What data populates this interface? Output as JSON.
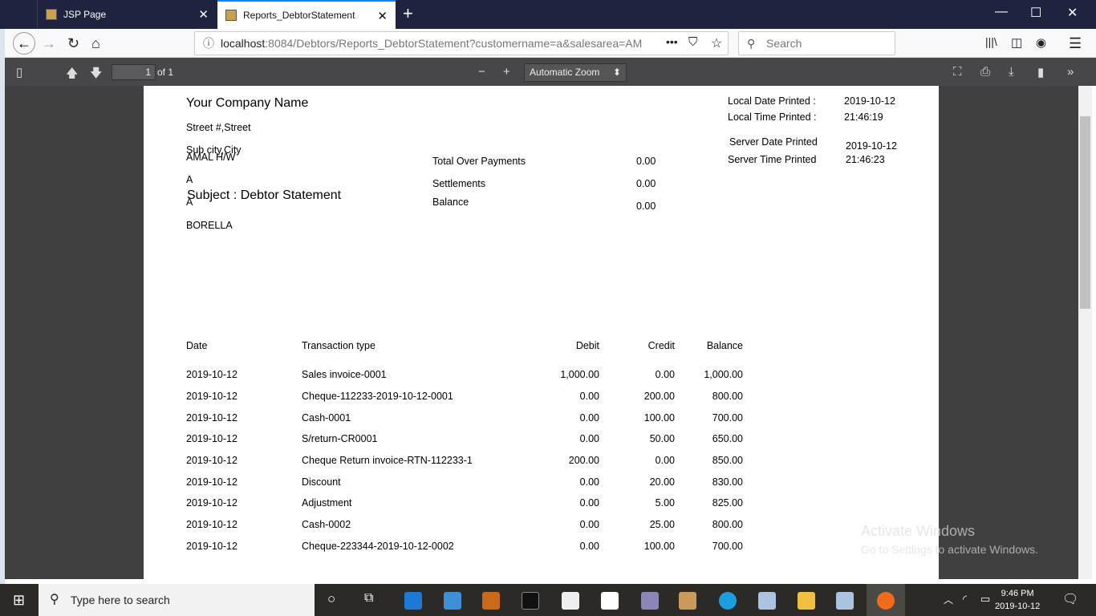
{
  "browser": {
    "tabs": [
      {
        "label": "JSP Page"
      },
      {
        "label": "Reports_DebtorStatement",
        "active": true
      }
    ],
    "url_host": "localhost",
    "url_rest": ":8084/Debtors/Reports_DebtorStatement?customername=a&salesarea=AM",
    "search_placeholder": "Search"
  },
  "pdf_toolbar": {
    "page": "1",
    "of": "of 1",
    "zoom": "Automatic Zoom"
  },
  "report": {
    "company": "Your Company Name",
    "street": "Street #,Street",
    "city": "Sub city,City",
    "local_date_label": "Local Date Printed  :",
    "local_date": "2019-10-12",
    "local_time_label": "Local Time Printed :",
    "local_time": "21:46:19",
    "server_date_label": "Server Date Printed",
    "server_date": "2019-10-12",
    "server_time_label": "Server Time Printed",
    "server_time": "21:46:23",
    "subject": "Subject : Debtor Statement",
    "customer": [
      "AMAL H/W",
      "A",
      "A",
      "BORELLA"
    ],
    "summary": [
      {
        "label": "Total Over Payments",
        "value": "0.00"
      },
      {
        "label": "Settlements",
        "value": "0.00"
      },
      {
        "label": "Balance",
        "value": "0.00"
      }
    ],
    "columns": [
      "Date",
      "Transaction type",
      "Debit",
      "Credit",
      "Balance"
    ],
    "rows": [
      [
        "2019-10-12",
        "Sales invoice-0001",
        "1,000.00",
        "0.00",
        "1,000.00"
      ],
      [
        "2019-10-12",
        "Cheque-112233-2019-10-12-0001",
        "0.00",
        "200.00",
        "800.00"
      ],
      [
        "2019-10-12",
        "Cash-0001",
        "0.00",
        "100.00",
        "700.00"
      ],
      [
        "2019-10-12",
        "S/return-CR0001",
        "0.00",
        "50.00",
        "650.00"
      ],
      [
        "2019-10-12",
        "Cheque Return invoice-RTN-112233-1",
        "200.00",
        "0.00",
        "850.00"
      ],
      [
        "2019-10-12",
        "Discount",
        "0.00",
        "20.00",
        "830.00"
      ],
      [
        "2019-10-12",
        "Adjustment",
        "0.00",
        "5.00",
        "825.00"
      ],
      [
        "2019-10-12",
        "Cash-0002",
        "0.00",
        "25.00",
        "800.00"
      ],
      [
        "2019-10-12",
        "Cheque-223344-2019-10-12-0002",
        "0.00",
        "100.00",
        "700.00"
      ]
    ]
  },
  "watermark": {
    "title": "Activate Windows",
    "sub": "Go to Settings to activate Windows."
  },
  "taskbar": {
    "search": "Type here to search",
    "time": "9:46 PM",
    "date": "2019-10-12"
  }
}
